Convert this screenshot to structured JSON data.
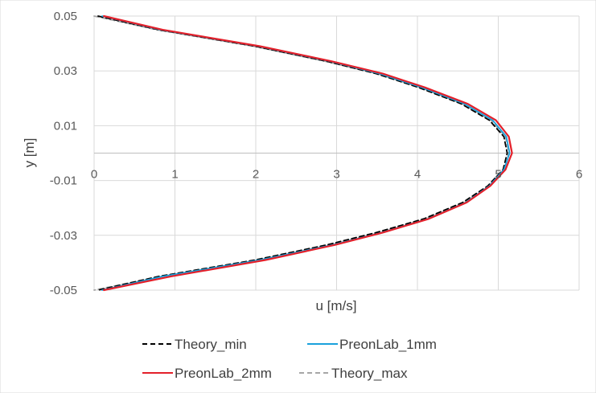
{
  "chart_data": {
    "type": "line",
    "orientation": "profile (x = velocity, y = position)",
    "title": "",
    "xlabel": "u [m/s]",
    "ylabel": "y [m]",
    "xlim": [
      0,
      6
    ],
    "ylim": [
      -0.05,
      0.05
    ],
    "x_ticks": [
      0,
      1,
      2,
      3,
      4,
      5,
      6
    ],
    "x_tick_labels": [
      "0",
      "1",
      "2",
      "3",
      "4",
      "5",
      "6"
    ],
    "y_ticks": [
      -0.05,
      -0.03,
      -0.01,
      0.01,
      0.03,
      0.05
    ],
    "y_tick_labels": [
      "-0.05",
      "-0.03",
      "-0.01",
      "0.01",
      "0.03",
      "0.05"
    ],
    "x_axis_crosses_at_y": 0,
    "grid": "vertical and horizontal major gridlines",
    "legend_position": "bottom",
    "series": [
      {
        "name": "Theory_min",
        "color": "#000000",
        "dash": "dashed",
        "points": [
          [
            0.05,
            0.05
          ],
          [
            0.8,
            0.045
          ],
          [
            1.99,
            0.039
          ],
          [
            2.88,
            0.0335
          ],
          [
            3.49,
            0.029
          ],
          [
            4.01,
            0.024
          ],
          [
            4.54,
            0.018
          ],
          [
            4.89,
            0.012
          ],
          [
            5.07,
            0.006
          ],
          [
            5.11,
            0.0
          ],
          [
            5.06,
            -0.006
          ],
          [
            4.87,
            -0.012
          ],
          [
            4.56,
            -0.018
          ],
          [
            4.08,
            -0.024
          ],
          [
            3.49,
            -0.029
          ],
          [
            2.88,
            -0.0335
          ],
          [
            1.99,
            -0.039
          ],
          [
            0.8,
            -0.045
          ],
          [
            0.05,
            -0.05
          ]
        ]
      },
      {
        "name": "PreonLab_1mm",
        "color": "#1aa1dc",
        "dash": "solid",
        "points": [
          [
            0.1,
            0.05
          ],
          [
            0.83,
            0.045
          ],
          [
            2.03,
            0.039
          ],
          [
            2.92,
            0.0335
          ],
          [
            3.53,
            0.029
          ],
          [
            4.05,
            0.024
          ],
          [
            4.58,
            0.018
          ],
          [
            4.93,
            0.012
          ],
          [
            5.1,
            0.006
          ],
          [
            5.14,
            0.0
          ],
          [
            5.07,
            -0.006
          ],
          [
            4.89,
            -0.012
          ],
          [
            4.6,
            -0.018
          ],
          [
            4.13,
            -0.024
          ],
          [
            3.56,
            -0.029
          ],
          [
            2.95,
            -0.0335
          ],
          [
            2.05,
            -0.039
          ],
          [
            0.85,
            -0.045
          ],
          [
            0.1,
            -0.05
          ]
        ]
      },
      {
        "name": "PreonLab_2mm",
        "color": "#e3202a",
        "dash": "solid",
        "points": [
          [
            0.12,
            0.05
          ],
          [
            0.85,
            0.045
          ],
          [
            2.05,
            0.039
          ],
          [
            2.94,
            0.0335
          ],
          [
            3.57,
            0.029
          ],
          [
            4.09,
            0.024
          ],
          [
            4.62,
            0.018
          ],
          [
            4.97,
            0.012
          ],
          [
            5.13,
            0.006
          ],
          [
            5.17,
            0.0
          ],
          [
            5.09,
            -0.006
          ],
          [
            4.9,
            -0.012
          ],
          [
            4.61,
            -0.018
          ],
          [
            4.14,
            -0.024
          ],
          [
            3.57,
            -0.029
          ],
          [
            2.98,
            -0.0335
          ],
          [
            2.12,
            -0.039
          ],
          [
            0.95,
            -0.045
          ],
          [
            0.12,
            -0.05
          ]
        ]
      },
      {
        "name": "Theory_max",
        "color": "#a6a6a6",
        "dash": "dashed",
        "points": [
          [
            0.0,
            0.05
          ],
          [
            0.78,
            0.045
          ],
          [
            1.97,
            0.039
          ],
          [
            2.86,
            0.0335
          ],
          [
            3.5,
            0.029
          ],
          [
            4.03,
            0.024
          ],
          [
            4.56,
            0.018
          ],
          [
            4.91,
            0.012
          ],
          [
            5.09,
            0.006
          ],
          [
            5.13,
            0.0
          ],
          [
            5.08,
            -0.006
          ],
          [
            4.89,
            -0.012
          ],
          [
            4.58,
            -0.018
          ],
          [
            4.1,
            -0.024
          ],
          [
            3.52,
            -0.029
          ],
          [
            2.91,
            -0.0335
          ],
          [
            2.02,
            -0.039
          ],
          [
            0.83,
            -0.045
          ],
          [
            0.0,
            -0.05
          ]
        ]
      }
    ]
  }
}
